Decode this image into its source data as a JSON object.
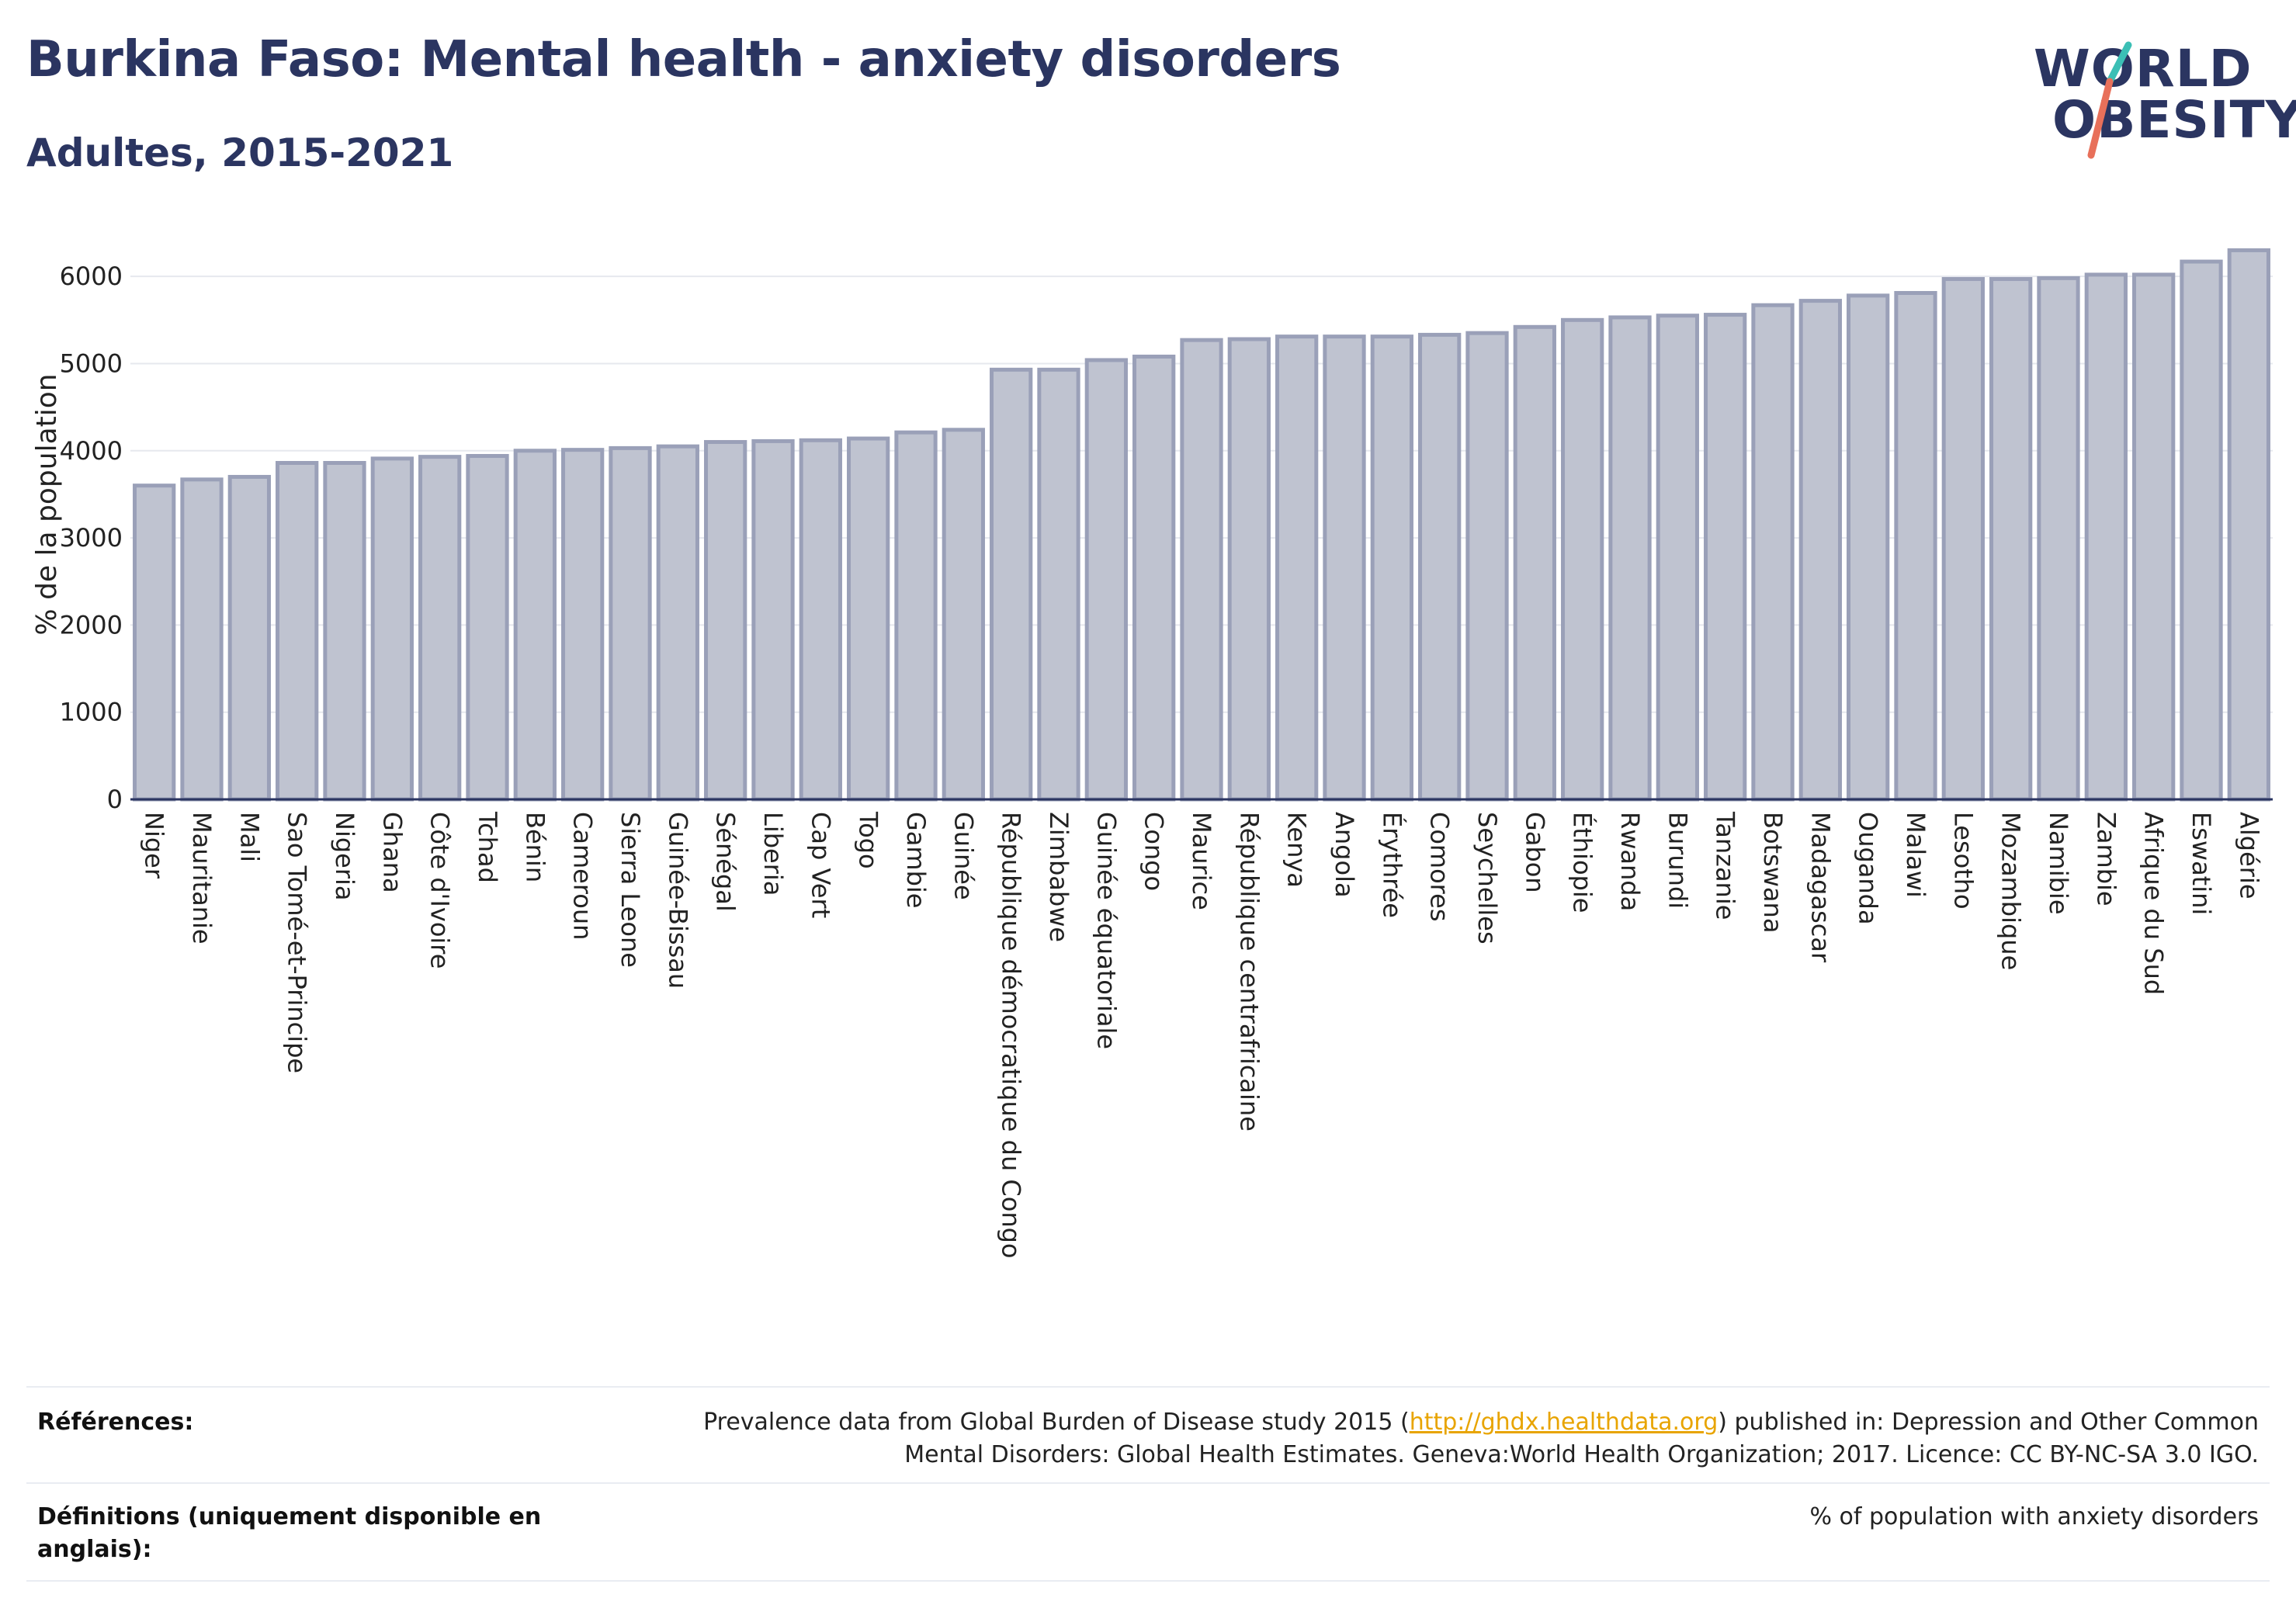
{
  "header": {
    "title": "Burkina Faso: Mental health - anxiety disorders",
    "subtitle": "Adultes, 2015-2021"
  },
  "logo": {
    "line1": "WORLD",
    "line2": "OBESITY"
  },
  "colors": {
    "title": "#2b3561",
    "bar_fill": "#bfc3d0",
    "bar_stroke": "#9aa0b8",
    "logo_teal": "#3bbfb5",
    "logo_coral": "#e8705a",
    "link": "#e8a400"
  },
  "chart_data": {
    "type": "bar",
    "ylabel": "% de la population",
    "ylim": [
      0,
      6500
    ],
    "yticks": [
      0,
      1000,
      2000,
      3000,
      4000,
      5000,
      6000
    ],
    "grid": true,
    "categories": [
      "Niger",
      "Mauritanie",
      "Mali",
      "Sao Tomé-et-Principe",
      "Nigeria",
      "Ghana",
      "Côte d'Ivoire",
      "Tchad",
      "Bénin",
      "Cameroun",
      "Sierra Leone",
      "Guinée-Bissau",
      "Sénégal",
      "Liberia",
      "Cap Vert",
      "Togo",
      "Gambie",
      "Guinée",
      "République démocratique du Congo",
      "Zimbabwe",
      "Guinée équatoriale",
      "Congo",
      "Maurice",
      "République centrafricaine",
      "Kenya",
      "Angola",
      "Érythrée",
      "Comores",
      "Seychelles",
      "Gabon",
      "Éthiopie",
      "Rwanda",
      "Burundi",
      "Tanzanie",
      "Botswana",
      "Madagascar",
      "Ouganda",
      "Malawi",
      "Lesotho",
      "Mozambique",
      "Namibie",
      "Zambie",
      "Afrique du Sud",
      "Eswatini",
      "Algérie"
    ],
    "values": [
      3600,
      3670,
      3700,
      3860,
      3860,
      3910,
      3930,
      3940,
      4000,
      4010,
      4030,
      4050,
      4100,
      4110,
      4120,
      4140,
      4210,
      4240,
      4930,
      4930,
      5040,
      5080,
      5270,
      5280,
      5310,
      5310,
      5310,
      5330,
      5350,
      5420,
      5500,
      5530,
      5550,
      5560,
      5670,
      5720,
      5780,
      5810,
      5970,
      5970,
      5980,
      6020,
      6020,
      6170,
      6300
    ]
  },
  "references": {
    "label": "Références:",
    "text_before": "Prevalence data from Global Burden of Disease study 2015 (",
    "link": "http://ghdx.healthdata.org",
    "text_after_line1": ") published in: Depression and Other Common",
    "text_line2": "Mental Disorders: Global Health Estimates. Geneva:World Health Organization; 2017. Licence: CC BY-NC-SA 3.0 IGO."
  },
  "definitions": {
    "label_line1": "Définitions (uniquement disponible en",
    "label_line2": "anglais):",
    "text": "% of population with anxiety disorders"
  }
}
